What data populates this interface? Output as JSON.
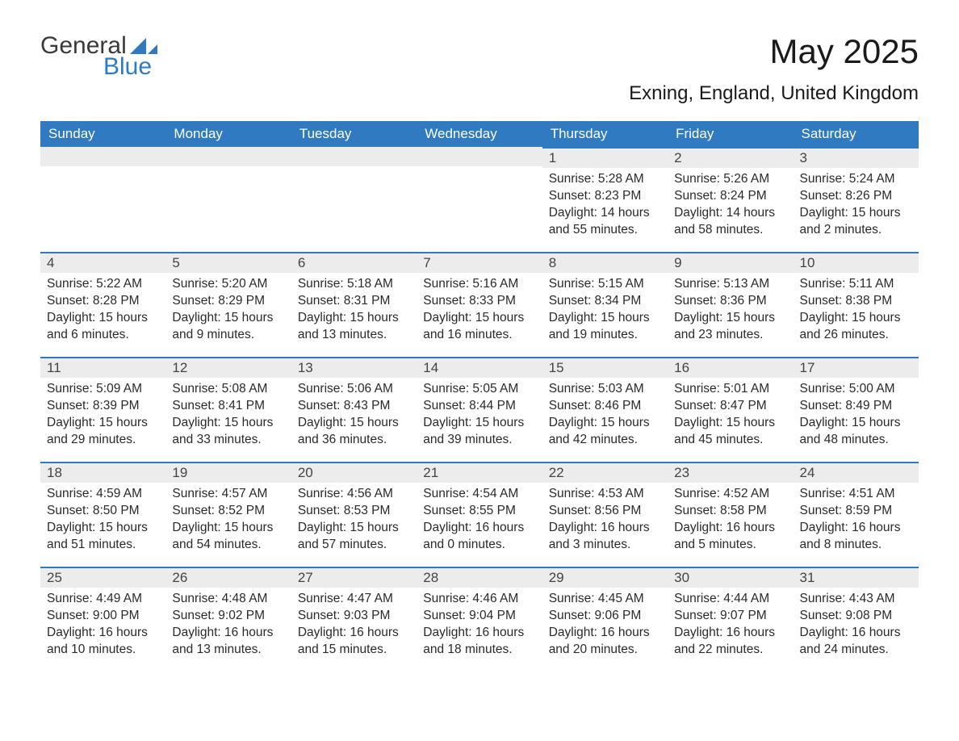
{
  "logo": {
    "word1": "General",
    "word2": "Blue"
  },
  "title": "May 2025",
  "location": "Exning, England, United Kingdom",
  "day_headers": [
    "Sunday",
    "Monday",
    "Tuesday",
    "Wednesday",
    "Thursday",
    "Friday",
    "Saturday"
  ],
  "colors": {
    "header_bg": "#2f7ac0",
    "header_text": "#ffffff",
    "daynum_bg": "#ececec",
    "daynum_border": "#2f7ac0",
    "body_text": "#2a2a2a",
    "page_bg": "#ffffff"
  },
  "weeks": [
    [
      null,
      null,
      null,
      null,
      {
        "n": "1",
        "sunrise": "5:28 AM",
        "sunset": "8:23 PM",
        "daylight": "14 hours and 55 minutes."
      },
      {
        "n": "2",
        "sunrise": "5:26 AM",
        "sunset": "8:24 PM",
        "daylight": "14 hours and 58 minutes."
      },
      {
        "n": "3",
        "sunrise": "5:24 AM",
        "sunset": "8:26 PM",
        "daylight": "15 hours and 2 minutes."
      }
    ],
    [
      {
        "n": "4",
        "sunrise": "5:22 AM",
        "sunset": "8:28 PM",
        "daylight": "15 hours and 6 minutes."
      },
      {
        "n": "5",
        "sunrise": "5:20 AM",
        "sunset": "8:29 PM",
        "daylight": "15 hours and 9 minutes."
      },
      {
        "n": "6",
        "sunrise": "5:18 AM",
        "sunset": "8:31 PM",
        "daylight": "15 hours and 13 minutes."
      },
      {
        "n": "7",
        "sunrise": "5:16 AM",
        "sunset": "8:33 PM",
        "daylight": "15 hours and 16 minutes."
      },
      {
        "n": "8",
        "sunrise": "5:15 AM",
        "sunset": "8:34 PM",
        "daylight": "15 hours and 19 minutes."
      },
      {
        "n": "9",
        "sunrise": "5:13 AM",
        "sunset": "8:36 PM",
        "daylight": "15 hours and 23 minutes."
      },
      {
        "n": "10",
        "sunrise": "5:11 AM",
        "sunset": "8:38 PM",
        "daylight": "15 hours and 26 minutes."
      }
    ],
    [
      {
        "n": "11",
        "sunrise": "5:09 AM",
        "sunset": "8:39 PM",
        "daylight": "15 hours and 29 minutes."
      },
      {
        "n": "12",
        "sunrise": "5:08 AM",
        "sunset": "8:41 PM",
        "daylight": "15 hours and 33 minutes."
      },
      {
        "n": "13",
        "sunrise": "5:06 AM",
        "sunset": "8:43 PM",
        "daylight": "15 hours and 36 minutes."
      },
      {
        "n": "14",
        "sunrise": "5:05 AM",
        "sunset": "8:44 PM",
        "daylight": "15 hours and 39 minutes."
      },
      {
        "n": "15",
        "sunrise": "5:03 AM",
        "sunset": "8:46 PM",
        "daylight": "15 hours and 42 minutes."
      },
      {
        "n": "16",
        "sunrise": "5:01 AM",
        "sunset": "8:47 PM",
        "daylight": "15 hours and 45 minutes."
      },
      {
        "n": "17",
        "sunrise": "5:00 AM",
        "sunset": "8:49 PM",
        "daylight": "15 hours and 48 minutes."
      }
    ],
    [
      {
        "n": "18",
        "sunrise": "4:59 AM",
        "sunset": "8:50 PM",
        "daylight": "15 hours and 51 minutes."
      },
      {
        "n": "19",
        "sunrise": "4:57 AM",
        "sunset": "8:52 PM",
        "daylight": "15 hours and 54 minutes."
      },
      {
        "n": "20",
        "sunrise": "4:56 AM",
        "sunset": "8:53 PM",
        "daylight": "15 hours and 57 minutes."
      },
      {
        "n": "21",
        "sunrise": "4:54 AM",
        "sunset": "8:55 PM",
        "daylight": "16 hours and 0 minutes."
      },
      {
        "n": "22",
        "sunrise": "4:53 AM",
        "sunset": "8:56 PM",
        "daylight": "16 hours and 3 minutes."
      },
      {
        "n": "23",
        "sunrise": "4:52 AM",
        "sunset": "8:58 PM",
        "daylight": "16 hours and 5 minutes."
      },
      {
        "n": "24",
        "sunrise": "4:51 AM",
        "sunset": "8:59 PM",
        "daylight": "16 hours and 8 minutes."
      }
    ],
    [
      {
        "n": "25",
        "sunrise": "4:49 AM",
        "sunset": "9:00 PM",
        "daylight": "16 hours and 10 minutes."
      },
      {
        "n": "26",
        "sunrise": "4:48 AM",
        "sunset": "9:02 PM",
        "daylight": "16 hours and 13 minutes."
      },
      {
        "n": "27",
        "sunrise": "4:47 AM",
        "sunset": "9:03 PM",
        "daylight": "16 hours and 15 minutes."
      },
      {
        "n": "28",
        "sunrise": "4:46 AM",
        "sunset": "9:04 PM",
        "daylight": "16 hours and 18 minutes."
      },
      {
        "n": "29",
        "sunrise": "4:45 AM",
        "sunset": "9:06 PM",
        "daylight": "16 hours and 20 minutes."
      },
      {
        "n": "30",
        "sunrise": "4:44 AM",
        "sunset": "9:07 PM",
        "daylight": "16 hours and 22 minutes."
      },
      {
        "n": "31",
        "sunrise": "4:43 AM",
        "sunset": "9:08 PM",
        "daylight": "16 hours and 24 minutes."
      }
    ]
  ],
  "labels": {
    "sunrise": "Sunrise: ",
    "sunset": "Sunset: ",
    "daylight": "Daylight: "
  }
}
